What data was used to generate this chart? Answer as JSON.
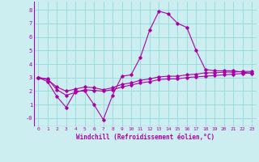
{
  "xlabel": "Windchill (Refroidissement éolien,°C)",
  "background_color": "#cceef0",
  "grid_color": "#99dddd",
  "line_color": "#aa00aa",
  "x_ticks": [
    0,
    1,
    2,
    3,
    4,
    5,
    6,
    7,
    8,
    9,
    10,
    11,
    12,
    13,
    14,
    15,
    16,
    17,
    18,
    19,
    20,
    21,
    22,
    23
  ],
  "y_ticks": [
    0,
    1,
    2,
    3,
    4,
    5,
    6,
    7,
    8
  ],
  "ylim": [
    -0.6,
    8.6
  ],
  "xlim": [
    -0.5,
    23.5
  ],
  "series1": [
    3.0,
    2.7,
    1.6,
    0.8,
    2.0,
    2.0,
    1.0,
    -0.1,
    1.7,
    3.1,
    3.2,
    4.5,
    6.5,
    7.9,
    7.7,
    7.0,
    6.7,
    5.0,
    3.6,
    3.5,
    3.5,
    3.5,
    3.4,
    3.3
  ],
  "series2": [
    3.0,
    2.9,
    2.1,
    1.7,
    1.9,
    2.1,
    2.05,
    2.0,
    2.1,
    2.3,
    2.45,
    2.6,
    2.7,
    2.85,
    2.9,
    2.9,
    3.0,
    3.05,
    3.1,
    3.15,
    3.2,
    3.25,
    3.3,
    3.35
  ],
  "series3": [
    3.0,
    2.85,
    2.3,
    2.0,
    2.15,
    2.3,
    2.25,
    2.1,
    2.25,
    2.5,
    2.6,
    2.8,
    2.9,
    3.05,
    3.1,
    3.1,
    3.2,
    3.25,
    3.35,
    3.35,
    3.4,
    3.4,
    3.45,
    3.45
  ]
}
